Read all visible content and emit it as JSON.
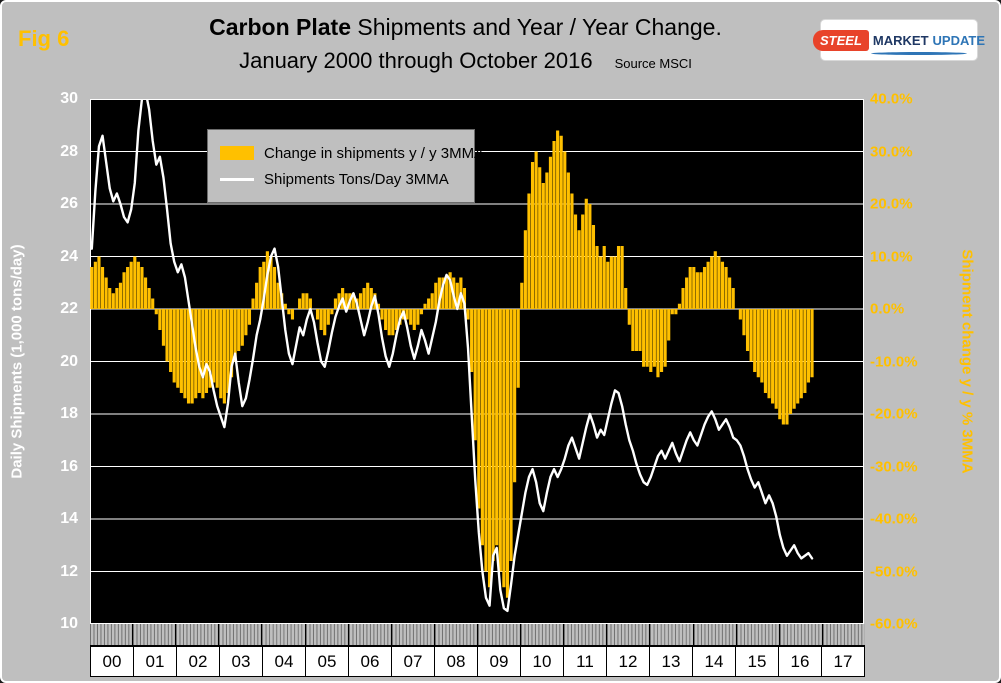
{
  "figure": {
    "fig_label": "Fig 6",
    "title_bold": "Carbon Plate",
    "title_rest": " Shipments and Year / Year Change.",
    "title_line2": "January 2000 through October 2016",
    "source": "Source MSCI"
  },
  "logo": {
    "steel": "STEEL",
    "market": "MARKET",
    "update": "UPDATE"
  },
  "legend": {
    "bar_label": "Change in shipments y / y 3MMA",
    "line_label": "Shipments Tons/Day 3MMA"
  },
  "axes": {
    "left_title": "Daily Shipments (1,000 tons/day)",
    "right_title": "Shipment change y / y % 3MMA",
    "left_ticks": [
      "30",
      "28",
      "26",
      "24",
      "22",
      "20",
      "18",
      "16",
      "14",
      "12",
      "10"
    ],
    "right_ticks": [
      "40.0%",
      "30.0%",
      "20.0%",
      "10.0%",
      "0.0%",
      "-10.0%",
      "-20.0%",
      "-30.0%",
      "-40.0%",
      "-50.0%",
      "-60.0%"
    ],
    "x_years": [
      "00",
      "01",
      "02",
      "03",
      "04",
      "05",
      "06",
      "07",
      "08",
      "09",
      "10",
      "11",
      "12",
      "13",
      "14",
      "15",
      "16",
      "17"
    ]
  },
  "colors": {
    "bar": "#FFC000",
    "line": "#FFFFFF",
    "plot_bg": "#000000",
    "page_bg": "#BFBFBF",
    "left_axis_text": "#FFFFFF",
    "right_axis_text": "#FFC000"
  },
  "chart_data": {
    "type": "combo",
    "title": "Carbon Plate Shipments and Year / Year Change. January 2000 through October 2016",
    "x_start": "2000-01",
    "x_end": "2016-10",
    "x_axis_range": [
      2000,
      2018
    ],
    "grid": "horizontal",
    "legend_position": "top-left-inside",
    "left_axis": {
      "label": "Daily Shipments (1,000 tons/day)",
      "range": [
        10,
        30
      ],
      "tick_step": 2
    },
    "right_axis": {
      "label": "Shipment change y / y % 3MMA",
      "range": [
        -60,
        40
      ],
      "tick_step": 10
    },
    "series": [
      {
        "name": "Change in shipments y / y 3MMA",
        "type": "bar",
        "axis": "right",
        "unit": "%",
        "color": "#FFC000",
        "values": [
          8,
          9,
          10,
          8,
          6,
          4,
          3,
          4,
          5,
          7,
          8,
          9,
          10,
          9,
          8,
          6,
          4,
          2,
          -1,
          -4,
          -7,
          -10,
          -12,
          -14,
          -15,
          -16,
          -17,
          -18,
          -18,
          -17,
          -16,
          -17,
          -16,
          -15,
          -14,
          -15,
          -17,
          -18,
          -16,
          -13,
          -10,
          -8,
          -7,
          -5,
          -3,
          2,
          5,
          8,
          9,
          11,
          10,
          8,
          5,
          3,
          1,
          -1,
          -2,
          0,
          2,
          3,
          3,
          2,
          0,
          -2,
          -4,
          -5,
          -3,
          -1,
          2,
          3,
          4,
          3,
          3,
          3,
          2,
          3,
          4,
          5,
          4,
          3,
          1,
          -2,
          -4,
          -5,
          -5,
          -4,
          -3,
          -2,
          -2,
          -3,
          -4,
          -3,
          -1,
          1,
          2,
          3,
          5,
          6,
          6,
          6,
          7,
          6,
          5,
          6,
          4,
          -2,
          -12,
          -25,
          -38,
          -45,
          -50,
          -53,
          -48,
          -45,
          -50,
          -53,
          -55,
          -48,
          -33,
          -15,
          5,
          15,
          22,
          28,
          30,
          27,
          24,
          26,
          29,
          32,
          34,
          33,
          30,
          26,
          22,
          18,
          15,
          18,
          21,
          20,
          16,
          12,
          10,
          12,
          9,
          10,
          10,
          12,
          12,
          4,
          -3,
          -8,
          -8,
          -8,
          -11,
          -11,
          -12,
          -11,
          -13,
          -12,
          -11,
          -6,
          -1,
          -1,
          1,
          4,
          6,
          8,
          8,
          7,
          7,
          8,
          9,
          10,
          11,
          10,
          9,
          8,
          6,
          4,
          0,
          -2,
          -5,
          -8,
          -10,
          -12,
          -13,
          -14,
          -16,
          -17,
          -18,
          -19,
          -21,
          -22,
          -22,
          -20,
          -19,
          -18,
          -17,
          -16,
          -14,
          -13
        ]
      },
      {
        "name": "Shipments Tons/Day 3MMA",
        "type": "line",
        "axis": "left",
        "unit": "1,000 tons/day",
        "color": "#FFFFFF",
        "values": [
          24.3,
          26.5,
          28.2,
          28.6,
          27.6,
          26.6,
          26.1,
          26.4,
          26.0,
          25.5,
          25.3,
          25.8,
          26.8,
          28.8,
          30.0,
          30.3,
          29.6,
          28.4,
          27.5,
          27.8,
          27.0,
          25.8,
          24.5,
          23.8,
          23.4,
          23.7,
          23.2,
          22.3,
          21.4,
          20.5,
          19.8,
          19.4,
          19.9,
          19.6,
          18.9,
          18.3,
          17.9,
          17.5,
          18.4,
          19.8,
          20.3,
          19.2,
          18.3,
          18.6,
          19.3,
          20.1,
          21.0,
          21.6,
          22.4,
          23.3,
          24.0,
          24.3,
          23.6,
          22.4,
          21.2,
          20.3,
          19.9,
          20.6,
          21.3,
          21.0,
          21.6,
          22.0,
          21.5,
          20.7,
          20.0,
          19.8,
          20.4,
          21.1,
          21.7,
          22.1,
          22.4,
          21.9,
          22.3,
          22.6,
          22.2,
          21.6,
          21.0,
          21.5,
          22.1,
          22.5,
          21.8,
          20.9,
          20.2,
          19.8,
          20.3,
          21.0,
          21.6,
          21.9,
          21.3,
          20.6,
          20.1,
          20.6,
          21.2,
          20.8,
          20.3,
          20.9,
          21.5,
          22.3,
          22.9,
          23.3,
          23.1,
          22.5,
          22.0,
          22.6,
          22.2,
          20.5,
          18.0,
          15.5,
          13.5,
          12.0,
          11.0,
          10.7,
          12.6,
          12.9,
          11.3,
          10.6,
          10.5,
          11.5,
          12.6,
          13.4,
          14.2,
          15.0,
          15.6,
          15.9,
          15.4,
          14.6,
          14.3,
          15.0,
          15.6,
          15.9,
          15.6,
          15.9,
          16.3,
          16.8,
          17.1,
          16.7,
          16.3,
          16.9,
          17.5,
          18.0,
          17.6,
          17.1,
          17.4,
          17.2,
          17.8,
          18.4,
          18.9,
          18.8,
          18.3,
          17.6,
          17.0,
          16.6,
          16.1,
          15.7,
          15.4,
          15.3,
          15.6,
          16.0,
          16.4,
          16.6,
          16.3,
          16.6,
          16.9,
          16.5,
          16.2,
          16.6,
          17.0,
          17.3,
          17.0,
          16.8,
          17.2,
          17.6,
          17.9,
          18.1,
          17.8,
          17.4,
          17.6,
          17.8,
          17.5,
          17.1,
          17.0,
          16.8,
          16.4,
          15.9,
          15.5,
          15.2,
          15.4,
          15.0,
          14.6,
          14.9,
          14.6,
          14.1,
          13.4,
          12.9,
          12.6,
          12.8,
          13.0,
          12.7,
          12.5,
          12.6,
          12.7,
          12.5
        ]
      }
    ]
  }
}
